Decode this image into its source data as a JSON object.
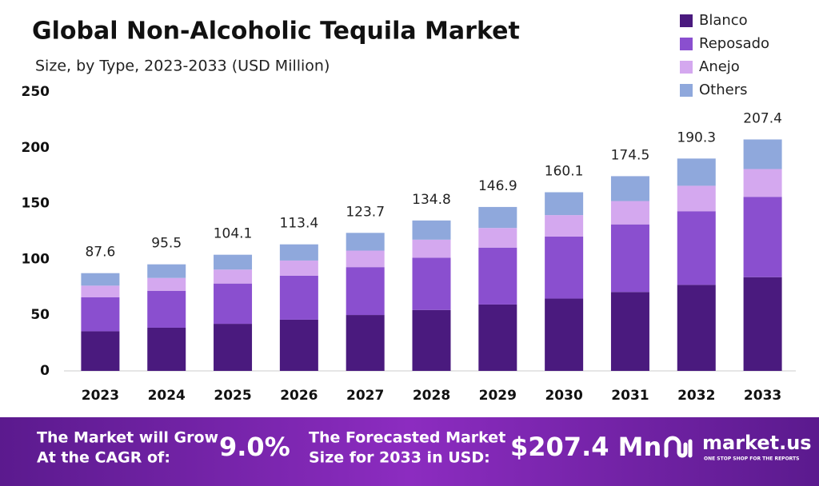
{
  "chart_data": {
    "type": "stacked_bar",
    "title": "Global Non-Alcoholic Tequila Market",
    "subtitle": "Size, by Type, 2023-2033 (USD Million)",
    "categories": [
      "2023",
      "2024",
      "2025",
      "2026",
      "2027",
      "2028",
      "2029",
      "2030",
      "2031",
      "2032",
      "2033"
    ],
    "series": [
      {
        "name": "Blanco",
        "color": "#4a1a7e",
        "values": [
          35.5,
          38.7,
          42.2,
          45.9,
          50.1,
          54.6,
          59.5,
          64.8,
          70.7,
          77.1,
          84.0
        ]
      },
      {
        "name": "Reposado",
        "color": "#8a4fcf",
        "values": [
          30.4,
          33.1,
          36.1,
          39.4,
          42.9,
          46.8,
          51.0,
          55.6,
          60.6,
          66.0,
          72.0
        ]
      },
      {
        "name": "Anejo",
        "color": "#d4a8ef",
        "values": [
          10.5,
          11.5,
          12.5,
          13.6,
          14.8,
          16.2,
          17.6,
          19.2,
          20.9,
          22.8,
          24.9
        ]
      },
      {
        "name": "Others",
        "color": "#8fa8dc",
        "values": [
          11.2,
          12.2,
          13.3,
          14.5,
          15.9,
          17.2,
          18.8,
          20.5,
          22.3,
          24.4,
          26.5
        ]
      }
    ],
    "totals": [
      87.6,
      95.5,
      104.1,
      113.4,
      123.7,
      134.8,
      146.9,
      160.1,
      174.5,
      190.3,
      207.4
    ],
    "ylim": [
      0,
      250
    ],
    "yticks": [
      0,
      50,
      100,
      150,
      200,
      250
    ],
    "grid": false,
    "legend": "top-right"
  },
  "footer": {
    "cagr_label_1": "The Market will Grow",
    "cagr_label_2": "At the CAGR of:",
    "cagr": "9.0%",
    "forecast_label_1": "The Forecasted Market",
    "forecast_label_2": "Size for 2033 in USD:",
    "forecast": "$207.4 Mn",
    "brand": "market.us",
    "tagline": "ONE STOP SHOP FOR THE REPORTS"
  }
}
